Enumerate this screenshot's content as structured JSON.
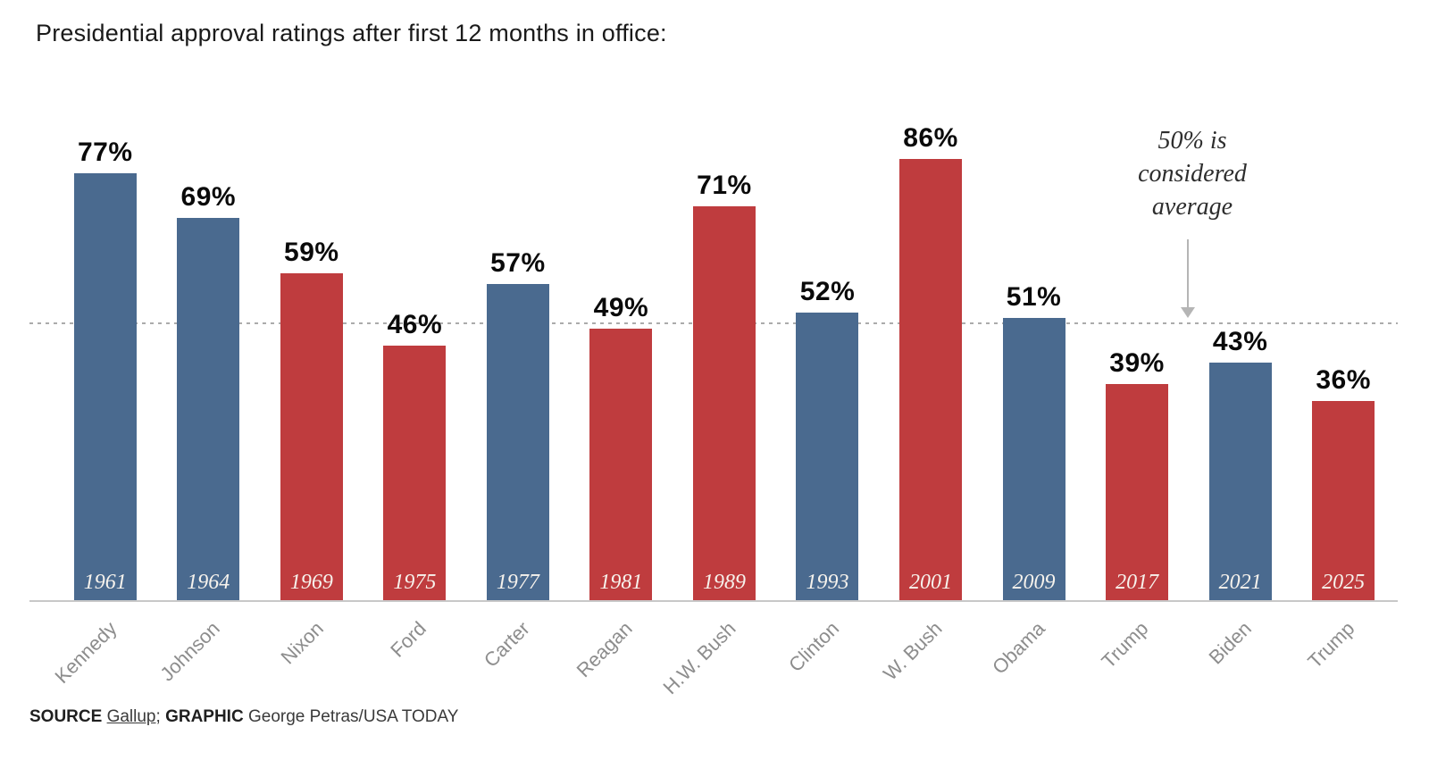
{
  "title": "Presidential approval ratings after first 12 months in office:",
  "colors": {
    "democrat": "#4a6a8f",
    "republican": "#bf3c3e",
    "value_label": "#0a0a0a",
    "name_label": "#8d8d8d",
    "year_label": "#f7f3ed",
    "gridline": "#ababab",
    "axis": "#c8c8c8",
    "arrow": "#b5b5b5"
  },
  "annotation": {
    "lines": [
      "50% is",
      "considered",
      "average"
    ]
  },
  "source": {
    "source_label": "SOURCE",
    "source_value": "Gallup",
    "separator": ";",
    "graphic_label": "GRAPHIC",
    "graphic_value": "George Petras/USA TODAY"
  },
  "chart_data": {
    "type": "bar",
    "title": "Presidential approval ratings after first 12 months in office:",
    "categories": [
      "Kennedy",
      "Johnson",
      "Nixon",
      "Ford",
      "Carter",
      "Reagan",
      "H.W. Bush",
      "Clinton",
      "W. Bush",
      "Obama",
      "Trump",
      "Biden",
      "Trump"
    ],
    "values": [
      77,
      69,
      59,
      46,
      57,
      49,
      71,
      52,
      86,
      51,
      39,
      43,
      36
    ],
    "value_suffix": "%",
    "ylim": [
      0,
      90
    ],
    "grid": "single dotted reference line at 50",
    "legend": "none",
    "reference_line": {
      "value": 50,
      "label": "50% is considered average"
    },
    "bars": [
      {
        "president": "Kennedy",
        "year": "1961",
        "value": 77,
        "party": "democrat"
      },
      {
        "president": "Johnson",
        "year": "1964",
        "value": 69,
        "party": "democrat"
      },
      {
        "president": "Nixon",
        "year": "1969",
        "value": 59,
        "party": "republican"
      },
      {
        "president": "Ford",
        "year": "1975",
        "value": 46,
        "party": "republican"
      },
      {
        "president": "Carter",
        "year": "1977",
        "value": 57,
        "party": "democrat"
      },
      {
        "president": "Reagan",
        "year": "1981",
        "value": 49,
        "party": "republican"
      },
      {
        "president": "H.W. Bush",
        "year": "1989",
        "value": 71,
        "party": "republican"
      },
      {
        "president": "Clinton",
        "year": "1993",
        "value": 52,
        "party": "democrat"
      },
      {
        "president": "W. Bush",
        "year": "2001",
        "value": 86,
        "party": "republican"
      },
      {
        "president": "Obama",
        "year": "2009",
        "value": 51,
        "party": "democrat"
      },
      {
        "president": "Trump",
        "year": "2017",
        "value": 39,
        "party": "republican"
      },
      {
        "president": "Biden",
        "year": "2021",
        "value": 43,
        "party": "democrat"
      },
      {
        "president": "Trump",
        "year": "2025",
        "value": 36,
        "party": "republican"
      }
    ]
  }
}
